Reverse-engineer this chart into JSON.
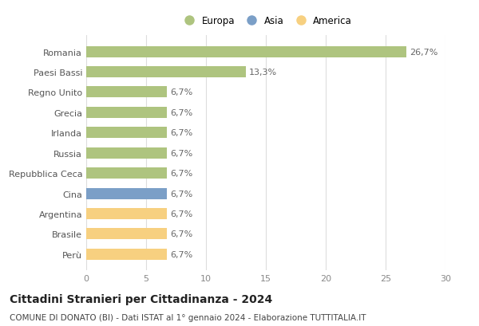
{
  "countries": [
    "Romania",
    "Paesi Bassi",
    "Regno Unito",
    "Grecia",
    "Irlanda",
    "Russia",
    "Repubblica Ceca",
    "Cina",
    "Argentina",
    "Brasile",
    "Perù"
  ],
  "values": [
    26.7,
    13.3,
    6.7,
    6.7,
    6.7,
    6.7,
    6.7,
    6.7,
    6.7,
    6.7,
    6.7
  ],
  "continents": [
    "Europa",
    "Europa",
    "Europa",
    "Europa",
    "Europa",
    "Europa",
    "Europa",
    "Asia",
    "America",
    "America",
    "America"
  ],
  "colors": {
    "Europa": "#aec47f",
    "Asia": "#7b9fc7",
    "America": "#f7d080"
  },
  "legend_labels": [
    "Europa",
    "Asia",
    "America"
  ],
  "legend_colors": [
    "#aec47f",
    "#7b9fc7",
    "#f7d080"
  ],
  "xlim": [
    0,
    30
  ],
  "xticks": [
    0,
    5,
    10,
    15,
    20,
    25,
    30
  ],
  "title": "Cittadini Stranieri per Cittadinanza - 2024",
  "subtitle": "COMUNE DI DONATO (BI) - Dati ISTAT al 1° gennaio 2024 - Elaborazione TUTTITALIA.IT",
  "title_fontsize": 10,
  "subtitle_fontsize": 7.5,
  "label_fontsize": 8,
  "tick_fontsize": 8,
  "bar_height": 0.55,
  "grid_color": "#dddddd",
  "bg_color": "#ffffff",
  "value_label_fontsize": 8
}
